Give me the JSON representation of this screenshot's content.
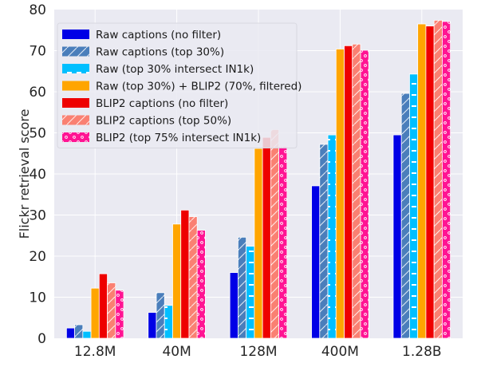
{
  "chart_data": {
    "type": "bar",
    "ylabel": "Flickr retrieval score",
    "xlabel": "",
    "title": "",
    "ylim": [
      0,
      80
    ],
    "yticks": [
      0,
      10,
      20,
      30,
      40,
      50,
      60,
      70,
      80
    ],
    "grid": true,
    "legend_position": "top-left",
    "categories": [
      "12.8M",
      "40M",
      "128M",
      "400M",
      "1.28B"
    ],
    "series": [
      {
        "name": "Raw captions (no filter)",
        "color": "#0000e6",
        "pattern": "solid",
        "values": [
          2.5,
          6.3,
          16.0,
          37.1,
          49.5
        ]
      },
      {
        "name": "Raw captions (top 30%)",
        "color": "#4a7ebb",
        "pattern": "diagonal",
        "values": [
          3.3,
          11.1,
          24.6,
          47.2,
          59.6
        ]
      },
      {
        "name": "Raw (top 30% intersect IN1k)",
        "color": "#00bfff",
        "pattern": "dash",
        "values": [
          1.7,
          8.0,
          22.4,
          49.5,
          64.3
        ]
      },
      {
        "name": "Raw (top 30%) + BLIP2 (70%, filtered)",
        "color": "#ffa500",
        "pattern": "solid",
        "values": [
          12.2,
          27.8,
          46.2,
          70.4,
          76.5
        ]
      },
      {
        "name": "BLIP2 captions (no filter)",
        "color": "#ee0000",
        "pattern": "solid",
        "values": [
          15.7,
          31.2,
          48.9,
          71.2,
          76.0
        ]
      },
      {
        "name": "BLIP2 captions (top 50%)",
        "color": "#fa8072",
        "pattern": "diagonal",
        "values": [
          13.5,
          29.6,
          50.8,
          71.6,
          77.4
        ]
      },
      {
        "name": "BLIP2 (top 75% intersect IN1k)",
        "color": "#ff1493",
        "pattern": "dots",
        "values": [
          11.7,
          26.3,
          46.7,
          70.1,
          77.1
        ]
      }
    ]
  }
}
